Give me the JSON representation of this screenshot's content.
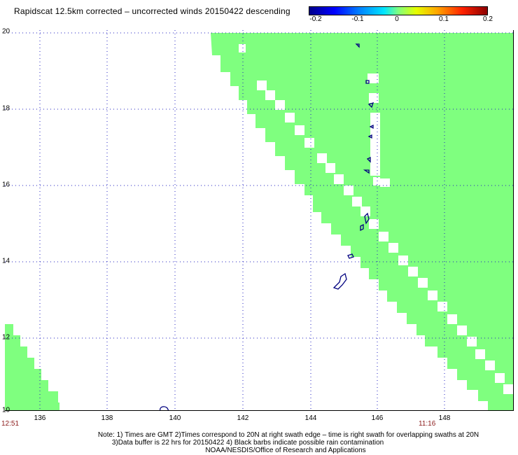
{
  "header": {
    "title": "Rapidscat 12.5km corrected – uncorrected winds 20150422 descending"
  },
  "colorbar": {
    "labels": [
      "-0.2",
      "-0.1",
      "0",
      "0.1",
      "0.2"
    ],
    "min": -0.2,
    "max": 0.2,
    "colors": [
      "#00008b",
      "#0000ff",
      "#00e5ff",
      "#7fff7f",
      "#e5ff00",
      "#ff2200",
      "#8b0000"
    ]
  },
  "map": {
    "lat_ticks": [
      "20",
      "18",
      "16",
      "14",
      "12",
      "10"
    ],
    "lon_ticks": [
      "136",
      "138",
      "140",
      "142",
      "144",
      "146",
      "148"
    ],
    "lat_range": [
      10,
      20
    ],
    "lon_range": [
      135,
      150
    ],
    "swath_color": "#7fff7f",
    "coast_color": "#00007f",
    "grid": "dotted",
    "time_left": "12:51",
    "time_right": "11:16"
  },
  "notes": {
    "line1": "Note: 1) Times are GMT 2)Times correspond to 20N at right swath edge – time is right swath for overlapping swaths at 20N",
    "line2": "3)Data buffer is 22 hrs for 20150422 4) Black barbs indicate possible rain contamination",
    "line3": "NOAA/NESDIS/Office of Research and Applications"
  }
}
